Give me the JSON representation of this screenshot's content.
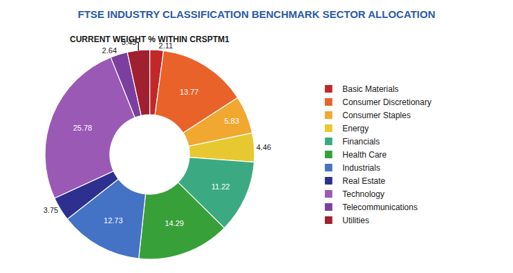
{
  "chart_data": {
    "type": "pie",
    "title": "FTSE INDUSTRY CLASSIFICATION BENCHMARK SECTOR ALLOCATION",
    "subtitle": "CURRENT WEIGHT % WITHIN CRSPTM1",
    "categories": [
      "Basic Materials",
      "Consumer Discretionary",
      "Consumer Staples",
      "Energy",
      "Financials",
      "Health Care",
      "Industrials",
      "Real Estate",
      "Technology",
      "Telecommunications",
      "Utilities"
    ],
    "values": [
      2.11,
      13.77,
      5.83,
      4.46,
      11.22,
      14.29,
      12.73,
      3.75,
      25.78,
      2.64,
      3.43
    ],
    "colors": [
      "#C0282A",
      "#E8622A",
      "#F0A830",
      "#E8C830",
      "#3BAA82",
      "#38A038",
      "#4472C4",
      "#2E3090",
      "#9B59B6",
      "#7B3FA0",
      "#A02030"
    ],
    "data_labels": true,
    "legend": "right"
  }
}
